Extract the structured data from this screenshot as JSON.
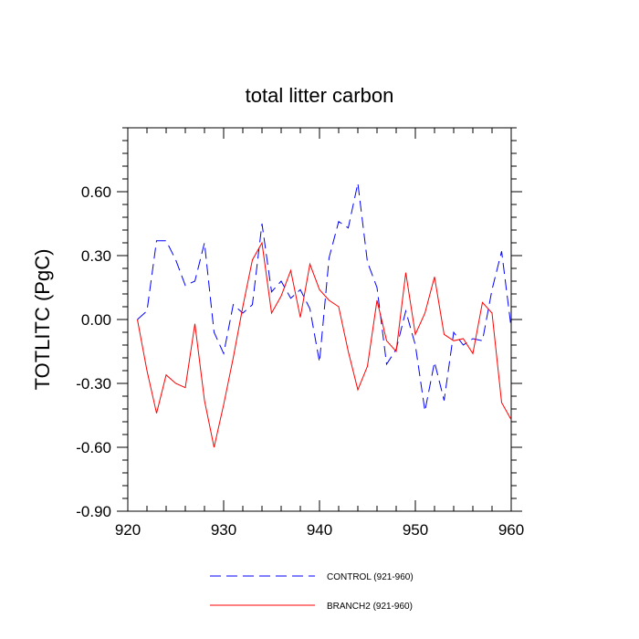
{
  "chart_data": {
    "type": "line",
    "title": "total litter carbon",
    "xlabel": "",
    "ylabel": "TOTLITC  (PgC)",
    "xlim": [
      920,
      960
    ],
    "ylim": [
      -0.9,
      0.9
    ],
    "xticks": [
      920,
      930,
      940,
      950,
      960
    ],
    "yticks": [
      -0.9,
      -0.6,
      -0.3,
      0.0,
      0.3,
      0.6
    ],
    "xtick_labels": [
      "920",
      "930",
      "940",
      "950",
      "960"
    ],
    "ytick_labels": [
      "-0.90",
      "-0.60",
      "-0.30",
      "0.00",
      "0.30",
      "0.60"
    ],
    "legend_position": "bottom",
    "grid": false,
    "x": [
      921,
      922,
      923,
      924,
      925,
      926,
      927,
      928,
      929,
      930,
      931,
      932,
      933,
      934,
      935,
      936,
      937,
      938,
      939,
      940,
      941,
      942,
      943,
      944,
      945,
      946,
      947,
      948,
      949,
      950,
      951,
      952,
      953,
      954,
      955,
      956,
      957,
      958,
      959,
      960
    ],
    "series": [
      {
        "name": "CONTROL (921-960)",
        "color": "#0000ff",
        "style": "dashed",
        "values": [
          0.0,
          0.04,
          0.37,
          0.37,
          0.28,
          0.16,
          0.18,
          0.36,
          -0.06,
          -0.16,
          0.07,
          0.03,
          0.07,
          0.45,
          0.13,
          0.18,
          0.1,
          0.14,
          0.05,
          -0.2,
          0.29,
          0.46,
          0.43,
          0.64,
          0.27,
          0.15,
          -0.21,
          -0.14,
          0.04,
          -0.12,
          -0.43,
          -0.2,
          -0.38,
          -0.06,
          -0.12,
          -0.09,
          -0.1,
          0.14,
          0.32,
          -0.04
        ]
      },
      {
        "name": "BRANCH2 (921-960)",
        "color": "#ff0000",
        "style": "solid",
        "values": [
          0.0,
          -0.24,
          -0.44,
          -0.26,
          -0.3,
          -0.32,
          -0.02,
          -0.38,
          -0.6,
          -0.4,
          -0.18,
          0.06,
          0.28,
          0.36,
          0.03,
          0.11,
          0.23,
          0.01,
          0.26,
          0.14,
          0.09,
          0.06,
          -0.15,
          -0.33,
          -0.22,
          0.09,
          -0.1,
          -0.15,
          0.22,
          -0.07,
          0.03,
          0.2,
          -0.07,
          -0.1,
          -0.09,
          -0.16,
          0.08,
          0.03,
          -0.39,
          -0.47
        ]
      }
    ]
  }
}
